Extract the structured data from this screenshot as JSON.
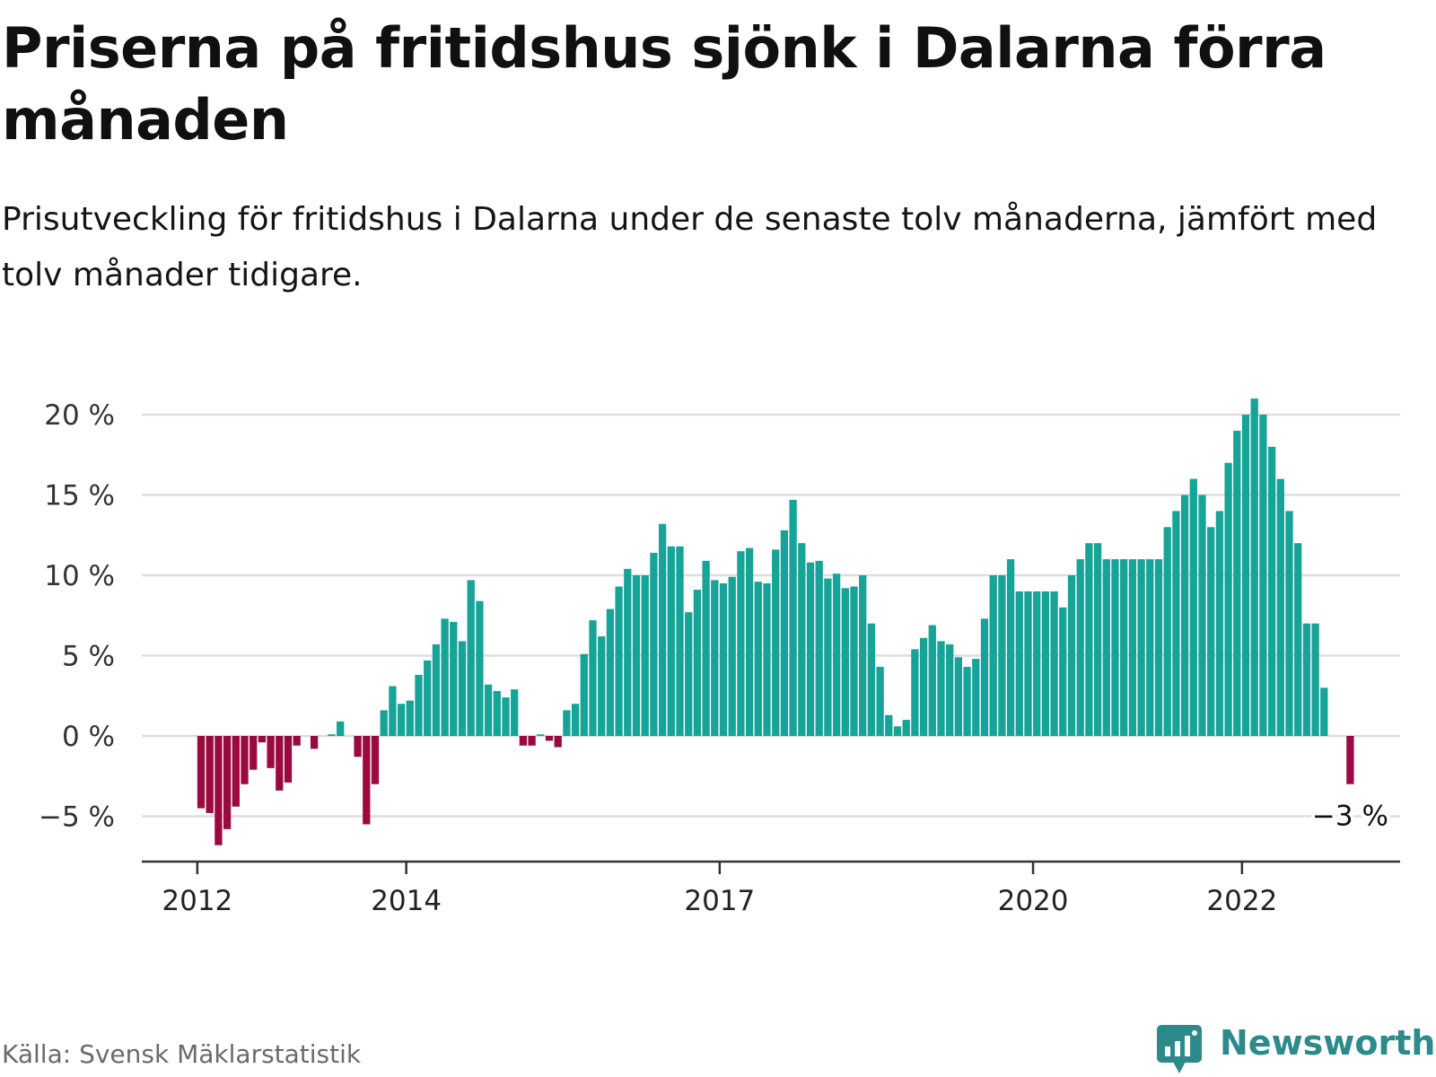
{
  "title": "Priserna på fritidshus sjönk i Dalarna förra månaden",
  "subtitle": "Prisutveckling för fritidshus i Dalarna under de senaste tolv månaderna, jämfört med tolv månader tidigare.",
  "source": "Källa: Svensk Mäklarstatistik",
  "brand": {
    "name": "Newsworthy",
    "icon": "newsworthy-logo-icon",
    "color": "#2d8a8a"
  },
  "colors": {
    "positive": "#16a398",
    "negative": "#9a0a3f",
    "grid": "#dddddd",
    "axis": "#333333"
  },
  "chart_data": {
    "type": "bar",
    "x_start": "2012-01",
    "x_end": "2023-01",
    "x_ticks": [
      {
        "label": "2012",
        "month": "2012-01"
      },
      {
        "label": "2014",
        "month": "2014-01"
      },
      {
        "label": "2017",
        "month": "2017-01"
      },
      {
        "label": "2020",
        "month": "2020-01"
      },
      {
        "label": "2022",
        "month": "2022-01"
      }
    ],
    "y_ticks": [
      {
        "value": -5,
        "label": "−5 %"
      },
      {
        "value": 0,
        "label": "0 %"
      },
      {
        "value": 5,
        "label": "5 %"
      },
      {
        "value": 10,
        "label": "10 %"
      },
      {
        "value": 15,
        "label": "15 %"
      },
      {
        "value": 20,
        "label": "20 %"
      }
    ],
    "ylim": [
      -7.8,
      21
    ],
    "unit": "%",
    "values": [
      -4.5,
      -4.8,
      -6.8,
      -5.8,
      -4.4,
      -3.0,
      -2.1,
      -0.4,
      -2.0,
      -3.4,
      -2.9,
      -0.6,
      0,
      -0.8,
      0,
      0.1,
      0.9,
      0,
      -1.3,
      -5.5,
      -3.0,
      1.6,
      3.1,
      2.0,
      2.2,
      3.8,
      4.7,
      5.7,
      7.3,
      7.1,
      5.9,
      9.7,
      8.4,
      3.2,
      2.8,
      2.4,
      2.9,
      -0.6,
      -0.6,
      0.1,
      -0.3,
      -0.7,
      1.6,
      2.0,
      5.1,
      7.2,
      6.2,
      7.9,
      9.3,
      10.4,
      10.0,
      10.0,
      11.4,
      13.2,
      11.8,
      11.8,
      7.7,
      9.1,
      10.9,
      9.7,
      9.5,
      9.9,
      11.5,
      11.7,
      9.6,
      9.5,
      11.6,
      12.8,
      14.7,
      12.0,
      10.8,
      10.9,
      9.8,
      10.1,
      9.2,
      9.3,
      10.0,
      7.0,
      4.3,
      1.3,
      0.6,
      1.0,
      5.4,
      6.1,
      6.9,
      5.9,
      5.7,
      4.9,
      4.3,
      4.8,
      7.3,
      10.0,
      10.0,
      11.0,
      9.0,
      9.0,
      9.0,
      9.0,
      9.0,
      8.0,
      10.0,
      11.0,
      12.0,
      12.0,
      11.0,
      11.0,
      11.0,
      11.0,
      11.0,
      11.0,
      11.0,
      13.0,
      14.0,
      15.0,
      16.0,
      15.0,
      13.0,
      14.0,
      17.0,
      19.0,
      20.0,
      21.0,
      20.0,
      18.0,
      16.0,
      14.0,
      12.0,
      7.0,
      7.0,
      3.0,
      null,
      null,
      -3.0
    ],
    "last_value_label": "−3 %"
  }
}
